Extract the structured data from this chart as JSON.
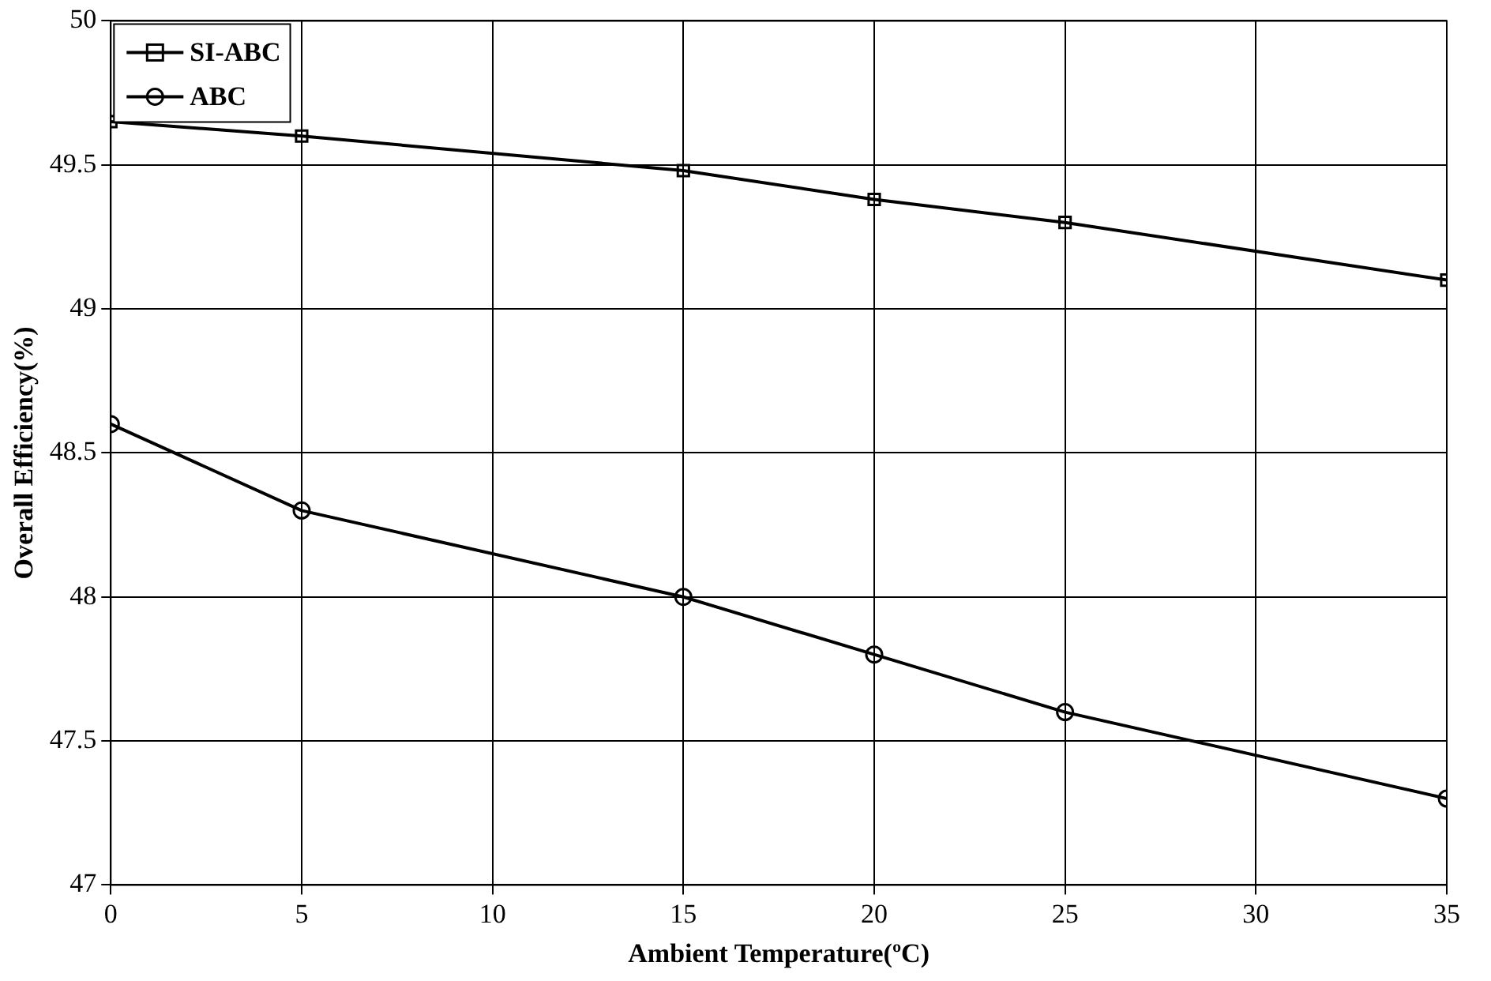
{
  "chart_data": {
    "type": "line",
    "xlabel": "Ambient Temperature(ºC)",
    "ylabel": "Overall Efficiency(%)",
    "x": [
      0,
      5,
      15,
      20,
      25,
      35
    ],
    "series": [
      {
        "name": "SI-ABC",
        "color": "#000000",
        "marker": "square",
        "values": [
          49.65,
          49.6,
          49.48,
          49.38,
          49.3,
          49.1
        ]
      },
      {
        "name": "ABC",
        "color": "#000000",
        "marker": "circle",
        "values": [
          48.6,
          48.3,
          48.0,
          47.8,
          47.6,
          47.3
        ]
      }
    ],
    "xlim": [
      0,
      35
    ],
    "xticks": [
      0,
      5,
      10,
      15,
      20,
      25,
      30,
      35
    ],
    "ylim": [
      47,
      50
    ],
    "yticks": [
      47,
      47.5,
      48,
      48.5,
      49,
      49.5,
      50
    ],
    "grid": true,
    "legend": "top left",
    "line_style": "solid"
  }
}
